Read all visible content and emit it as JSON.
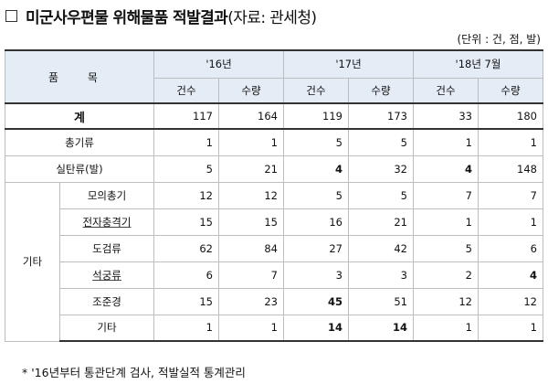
{
  "title": {
    "main": "미군사우편물 위해물품 적발결과",
    "source": "(자료: 관세청)"
  },
  "unit": "(단위 : 건, 점, 발)",
  "header": {
    "item": "품 목",
    "periods": [
      "'16년",
      "'17년",
      "'18년 7월"
    ],
    "cases": "건수",
    "quantity": "수량"
  },
  "total": {
    "label": "계",
    "values": [
      "117",
      "164",
      "119",
      "173",
      "33",
      "180"
    ]
  },
  "rows": [
    {
      "label": "총기류",
      "values": [
        "1",
        "1",
        "5",
        "5",
        "1",
        "1"
      ]
    },
    {
      "label": "실탄류(발)",
      "values": [
        "5",
        "21",
        "4",
        "32",
        "4",
        "148"
      ]
    }
  ],
  "other": {
    "label": "기타",
    "rows": [
      {
        "label": "모의총기",
        "values": [
          "12",
          "12",
          "5",
          "5",
          "7",
          "7"
        ]
      },
      {
        "label": "전자충격기",
        "values": [
          "15",
          "15",
          "16",
          "21",
          "1",
          "1"
        ]
      },
      {
        "label": "도검류",
        "values": [
          "62",
          "84",
          "27",
          "42",
          "5",
          "6"
        ]
      },
      {
        "label": "석궁류",
        "values": [
          "6",
          "7",
          "3",
          "3",
          "2",
          "4"
        ]
      },
      {
        "label": "조준경",
        "values": [
          "15",
          "23",
          "45",
          "51",
          "12",
          "12"
        ]
      },
      {
        "label": "기타",
        "values": [
          "1",
          "1",
          "14",
          "14",
          "1",
          "1"
        ]
      }
    ]
  },
  "footnote": "* '16년부터 통관단계 검사, 적발실적 통계관리"
}
